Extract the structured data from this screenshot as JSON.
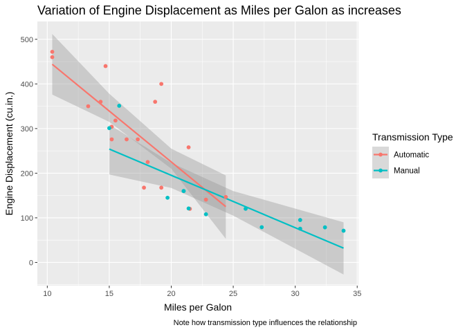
{
  "chart_data": {
    "type": "scatter",
    "title": "Variation of Engine Displacement as Miles per Galon as increases",
    "xlabel": "Miles per Galon",
    "ylabel": "Engine Displacement (cu.in.)",
    "caption": "Note how transmission type influences the relationship",
    "xlim": [
      9.2,
      35.1
    ],
    "ylim": [
      -52,
      540
    ],
    "xticks": [
      10,
      15,
      20,
      25,
      30,
      35
    ],
    "yticks": [
      0,
      100,
      200,
      300,
      400,
      500
    ],
    "grid": true,
    "legend": {
      "title": "Transmission Type",
      "position": "right"
    },
    "series": [
      {
        "name": "Automatic",
        "color": "#F8766D",
        "points": [
          [
            21.4,
            258
          ],
          [
            18.7,
            360
          ],
          [
            18.1,
            225
          ],
          [
            14.3,
            360
          ],
          [
            24.4,
            146.7
          ],
          [
            22.8,
            140.8
          ],
          [
            19.2,
            167.6
          ],
          [
            17.8,
            167.6
          ],
          [
            16.4,
            275.8
          ],
          [
            17.3,
            275.8
          ],
          [
            15.2,
            275.8
          ],
          [
            10.4,
            472
          ],
          [
            10.4,
            460
          ],
          [
            14.7,
            440
          ],
          [
            21.5,
            120.1
          ],
          [
            15.5,
            318
          ],
          [
            15.2,
            304
          ],
          [
            13.3,
            350
          ],
          [
            19.2,
            400
          ]
        ],
        "fit": {
          "x": [
            10.4,
            24.4
          ],
          "y": [
            444,
            125
          ]
        },
        "band_upper": {
          "x": [
            10.4,
            15,
            20,
            24.4
          ],
          "y": [
            512,
            378,
            255,
            195
          ]
        },
        "band_lower": {
          "x": [
            10.4,
            15,
            20,
            24.4
          ],
          "y": [
            376,
            315,
            210,
            53
          ]
        }
      },
      {
        "name": "Manual",
        "color": "#00BFC4",
        "points": [
          [
            21.0,
            160
          ],
          [
            21.0,
            160
          ],
          [
            22.8,
            108
          ],
          [
            32.4,
            78.7
          ],
          [
            30.4,
            75.7
          ],
          [
            33.9,
            71.1
          ],
          [
            27.3,
            79
          ],
          [
            26.0,
            120.3
          ],
          [
            30.4,
            95.1
          ],
          [
            15.8,
            351
          ],
          [
            19.7,
            145
          ],
          [
            15.0,
            301
          ],
          [
            21.4,
            121
          ]
        ],
        "fit": {
          "x": [
            15.0,
            33.9
          ],
          "y": [
            254,
            32
          ]
        },
        "band_upper": {
          "x": [
            15,
            20,
            25,
            33.9
          ],
          "y": [
            309,
            223,
            160,
            90
          ]
        },
        "band_lower": {
          "x": [
            15,
            20,
            25,
            33.9
          ],
          "y": [
            197,
            167,
            105,
            -27
          ]
        }
      }
    ]
  }
}
